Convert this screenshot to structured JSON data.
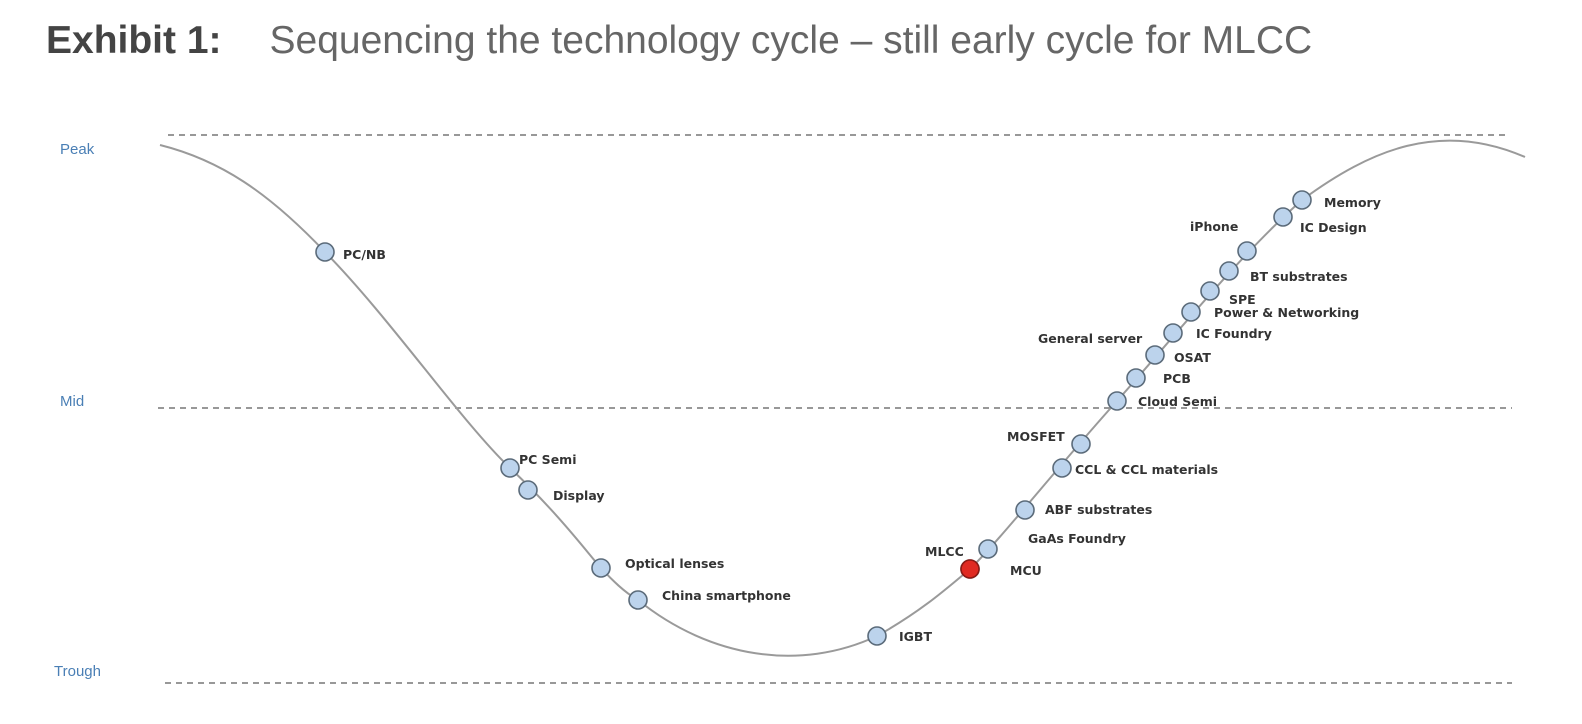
{
  "header": {
    "exhibit_label": "Exhibit 1:",
    "title": "Sequencing the technology cycle – still early cycle for MLCC"
  },
  "levels": {
    "peak": "Peak",
    "mid": "Mid",
    "trough": "Trough"
  },
  "colors": {
    "node_fill": "#bcd3ec",
    "highlight_fill": "#e02a22",
    "curve": "#9a9a9a",
    "level_label": "#4a7fb5"
  },
  "nodes": [
    {
      "label": "PC/NB"
    },
    {
      "label": "PC Semi"
    },
    {
      "label": "Display"
    },
    {
      "label": "Optical lenses"
    },
    {
      "label": "China smartphone"
    },
    {
      "label": "IGBT"
    },
    {
      "label": "MCU"
    },
    {
      "label": "MLCC",
      "highlight": true
    },
    {
      "label": "GaAs Foundry"
    },
    {
      "label": "ABF substrates"
    },
    {
      "label": "CCL & CCL materials"
    },
    {
      "label": "MOSFET"
    },
    {
      "label": "Cloud Semi"
    },
    {
      "label": "PCB"
    },
    {
      "label": "OSAT"
    },
    {
      "label": "General server"
    },
    {
      "label": "IC Foundry"
    },
    {
      "label": "Power & Networking"
    },
    {
      "label": "SPE"
    },
    {
      "label": "BT substrates"
    },
    {
      "label": "iPhone"
    },
    {
      "label": "IC Design"
    },
    {
      "label": "Memory"
    }
  ]
}
